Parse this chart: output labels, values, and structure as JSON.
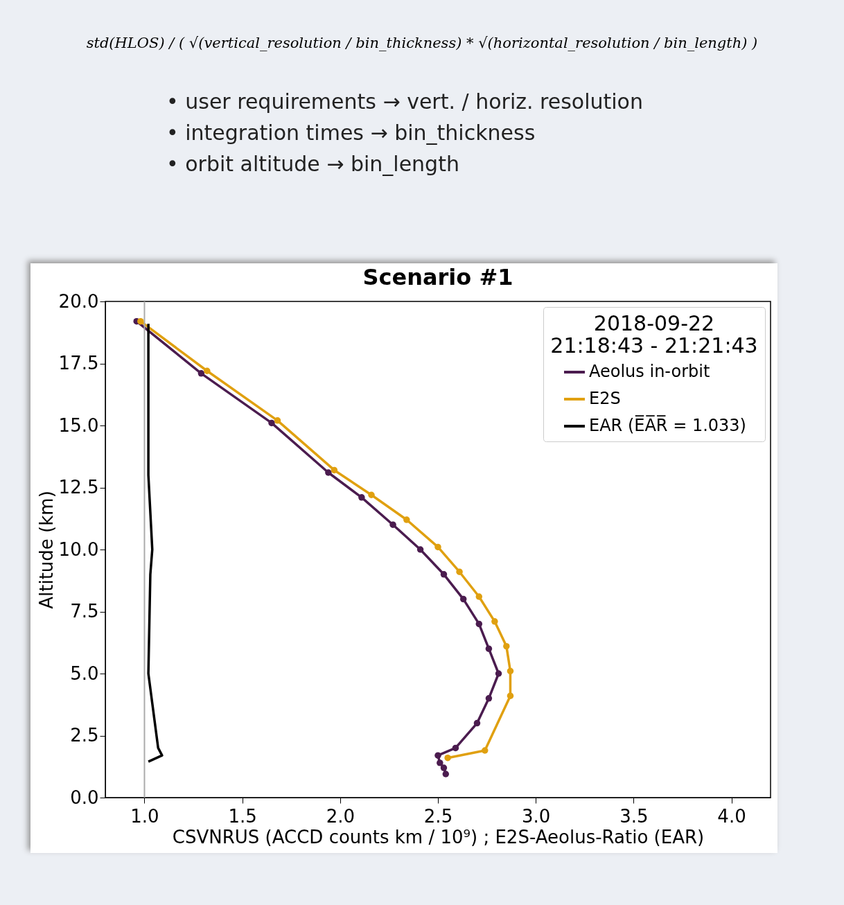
{
  "chart_data": {
    "type": "line",
    "title": "Scenario #1",
    "xlabel": "CSVNRUS (ACCD counts km / 10⁹) ; E2S-Aeolus-Ratio (EAR)",
    "ylabel": "Altitude (km)",
    "legend_title": "2018-09-22\n21:18:43 - 21:21:43",
    "legend": "top right",
    "grid": false,
    "annotations": [
      "std(HLOS) / ( √(vertical_resolution / bin_thickness) * √(horizontal_resolution / bin_length) )",
      "• user requirements → vert. / horiz. resolution",
      "• integration times → bin_thickness",
      "• orbit altitude → bin_length"
    ],
    "xlim": [
      0.8,
      4.2
    ],
    "xticks": [
      {
        "value": 1,
        "label": "1.0"
      },
      {
        "value": 1.5,
        "label": "1.5"
      },
      {
        "value": 2,
        "label": "2.0"
      },
      {
        "value": 2.5,
        "label": "2.5"
      },
      {
        "value": 3,
        "label": "3.0"
      },
      {
        "value": 3.5,
        "label": "3.5"
      },
      {
        "value": 4,
        "label": "4.0"
      }
    ],
    "ylim": [
      0,
      20
    ],
    "yticks": [
      {
        "value": 0,
        "label": "0.0"
      },
      {
        "value": 2.5,
        "label": "2.5"
      },
      {
        "value": 5,
        "label": "5.0"
      },
      {
        "value": 7.5,
        "label": "7.5"
      },
      {
        "value": 10,
        "label": "10.0"
      },
      {
        "value": 12.5,
        "label": "12.5"
      },
      {
        "value": 15,
        "label": "15.0"
      },
      {
        "value": 17.5,
        "label": "17.5"
      },
      {
        "value": 20,
        "label": "20.0"
      }
    ],
    "ref_lines": [
      {
        "axis": "x",
        "value": 1,
        "color": "#aaaaaa"
      }
    ],
    "series": [
      {
        "name": "Aeolus in-orbit",
        "color": "#4b1c4f",
        "marker": "circle",
        "x": [
          0.96,
          1.29,
          1.65,
          1.94,
          2.11,
          2.27,
          2.41,
          2.53,
          2.63,
          2.71,
          2.76,
          2.81,
          2.76,
          2.7,
          2.59,
          2.5,
          2.51,
          2.53,
          2.54
        ],
        "values": [
          19.2,
          17.1,
          15.1,
          13.1,
          12.1,
          11.0,
          10.0,
          9.0,
          8.0,
          7.0,
          6.0,
          5.0,
          4.0,
          3.0,
          2.0,
          1.7,
          1.4,
          1.2,
          0.95
        ]
      },
      {
        "name": "E2S",
        "color": "#e0a010",
        "marker": "circle",
        "x": [
          0.98,
          1.32,
          1.68,
          1.97,
          2.16,
          2.34,
          2.5,
          2.61,
          2.71,
          2.79,
          2.85,
          2.87,
          2.87,
          2.74,
          2.55
        ],
        "values": [
          19.2,
          17.2,
          15.2,
          13.2,
          12.2,
          11.2,
          10.1,
          9.1,
          8.1,
          7.1,
          6.1,
          5.1,
          4.1,
          1.9,
          1.6
        ]
      },
      {
        "name": "EAR (E̅A̅R̅ = 1.033)",
        "color": "#000000",
        "marker": "none",
        "x": [
          1.02,
          1.02,
          1.02,
          1.04,
          1.03,
          1.02,
          1.07,
          1.09,
          1.02
        ],
        "values": [
          19.1,
          17.0,
          13.0,
          10.0,
          9.0,
          5.0,
          2.0,
          1.7,
          1.45
        ]
      }
    ]
  }
}
